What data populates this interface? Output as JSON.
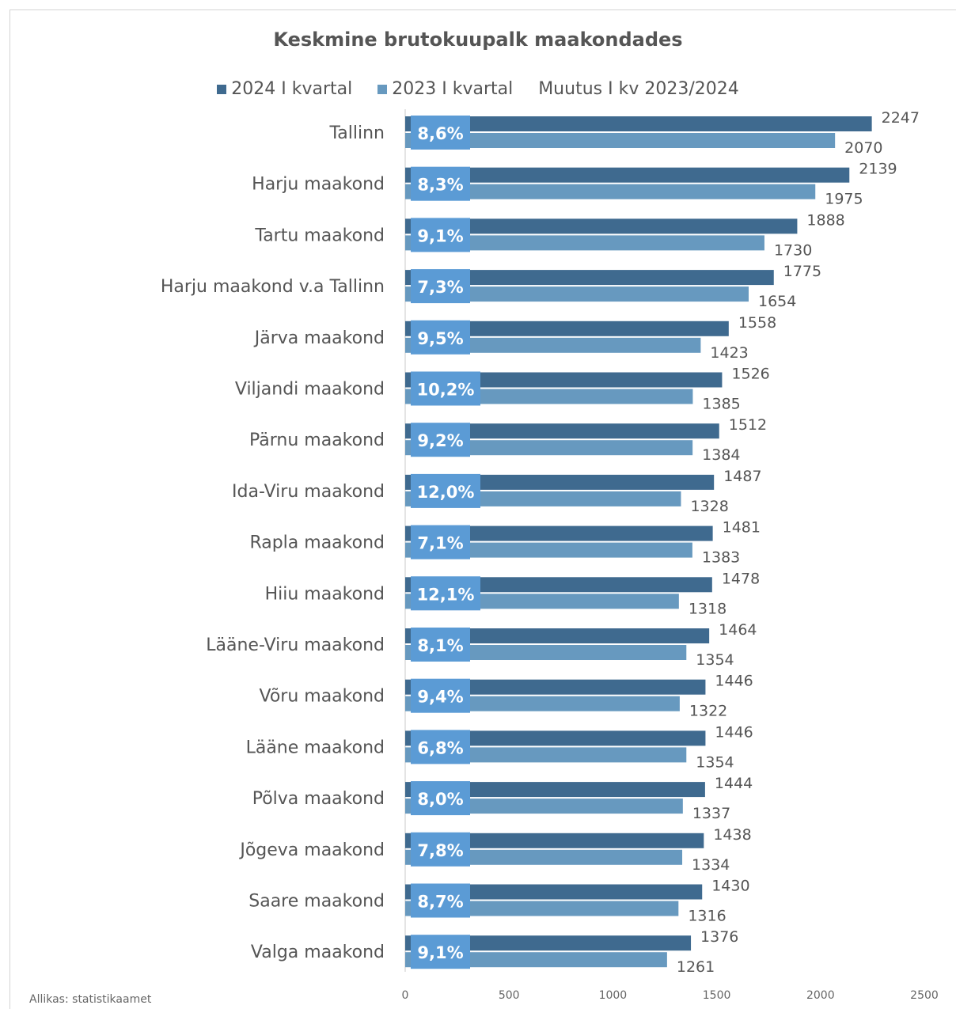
{
  "chart_data": {
    "type": "bar",
    "orientation": "horizontal",
    "title": "Keskmine brutokuupalk maakondades",
    "categories": [
      "Tallinn",
      "Harju maakond",
      "Tartu maakond",
      "Harju maakond v.a Tallinn",
      "Järva maakond",
      "Viljandi maakond",
      "Pärnu maakond",
      "Ida-Viru maakond",
      "Rapla maakond",
      "Hiiu maakond",
      "Lääne-Viru maakond",
      "Võru maakond",
      "Lääne maakond",
      "Põlva maakond",
      "Jõgeva maakond",
      "Saare maakond",
      "Valga maakond"
    ],
    "series": [
      {
        "name": "2024 I kvartal",
        "color": "#3f6a8f",
        "values": [
          2247,
          2139,
          1888,
          1775,
          1558,
          1526,
          1512,
          1487,
          1481,
          1478,
          1464,
          1446,
          1446,
          1444,
          1438,
          1430,
          1376
        ]
      },
      {
        "name": "2023 I kvartal",
        "color": "#6799bf",
        "values": [
          2070,
          1975,
          1730,
          1654,
          1423,
          1385,
          1384,
          1328,
          1383,
          1318,
          1354,
          1322,
          1354,
          1337,
          1334,
          1316,
          1261
        ]
      }
    ],
    "change": {
      "name": "Muutus I kv 2023/2024",
      "color": "#5b9bd5",
      "labels": [
        "8,6%",
        "8,3%",
        "9,1%",
        "7,3%",
        "9,5%",
        "10,2%",
        "9,2%",
        "12,0%",
        "7,1%",
        "12,1%",
        "8,1%",
        "9,4%",
        "6,8%",
        "8,0%",
        "7,8%",
        "8,7%",
        "9,1%"
      ]
    },
    "xlim": [
      0,
      2500
    ],
    "xticks": [
      0,
      500,
      1000,
      1500,
      2000,
      2500
    ],
    "legend_position": "top"
  },
  "source_note": "Allikas: statistikaamet"
}
